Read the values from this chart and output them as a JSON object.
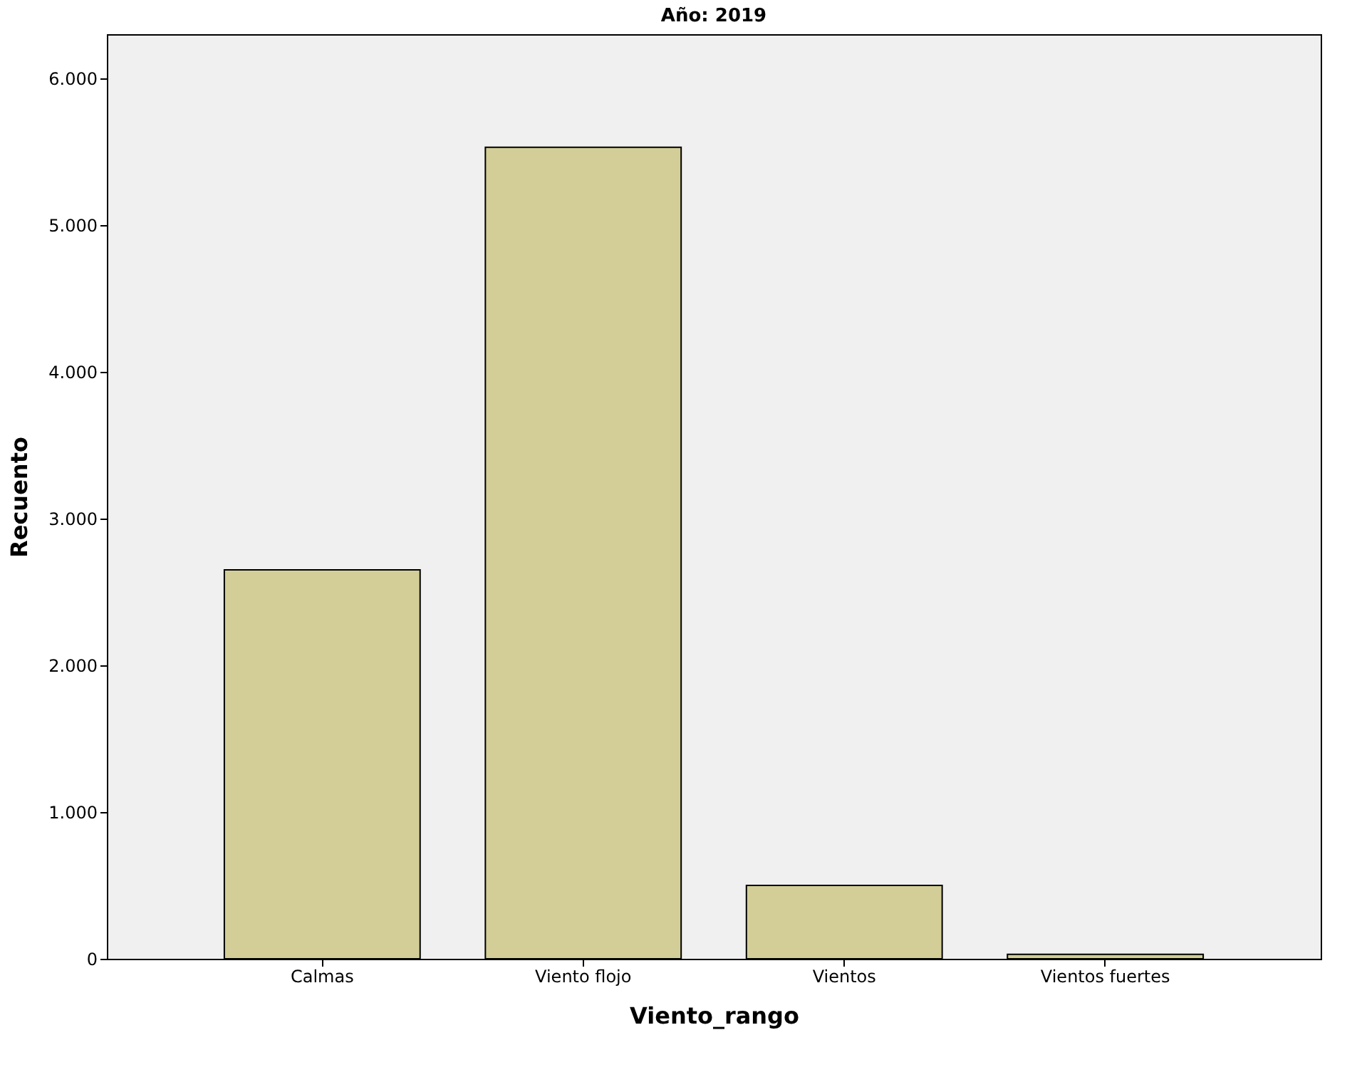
{
  "chart_data": {
    "type": "bar",
    "title": "Año: 2019",
    "xlabel": "Viento_rango",
    "ylabel": "Recuento",
    "categories": [
      "Calmas",
      "Viento flojo",
      "Vientos",
      "Vientos fuertes"
    ],
    "values": [
      2650,
      5530,
      500,
      30
    ],
    "color": "#d3ce97",
    "ylim": [
      0,
      6300
    ],
    "yticks": [
      0,
      {
        "value": 1000,
        "label": "1.000"
      },
      {
        "value": 2000,
        "label": "2.000"
      },
      {
        "value": 3000,
        "label": "3.000"
      },
      {
        "value": 4000,
        "label": "4.000"
      },
      {
        "value": 5000,
        "label": "5.000"
      },
      {
        "value": 6000,
        "label": "6.000"
      }
    ],
    "grid": false,
    "legend": false
  }
}
